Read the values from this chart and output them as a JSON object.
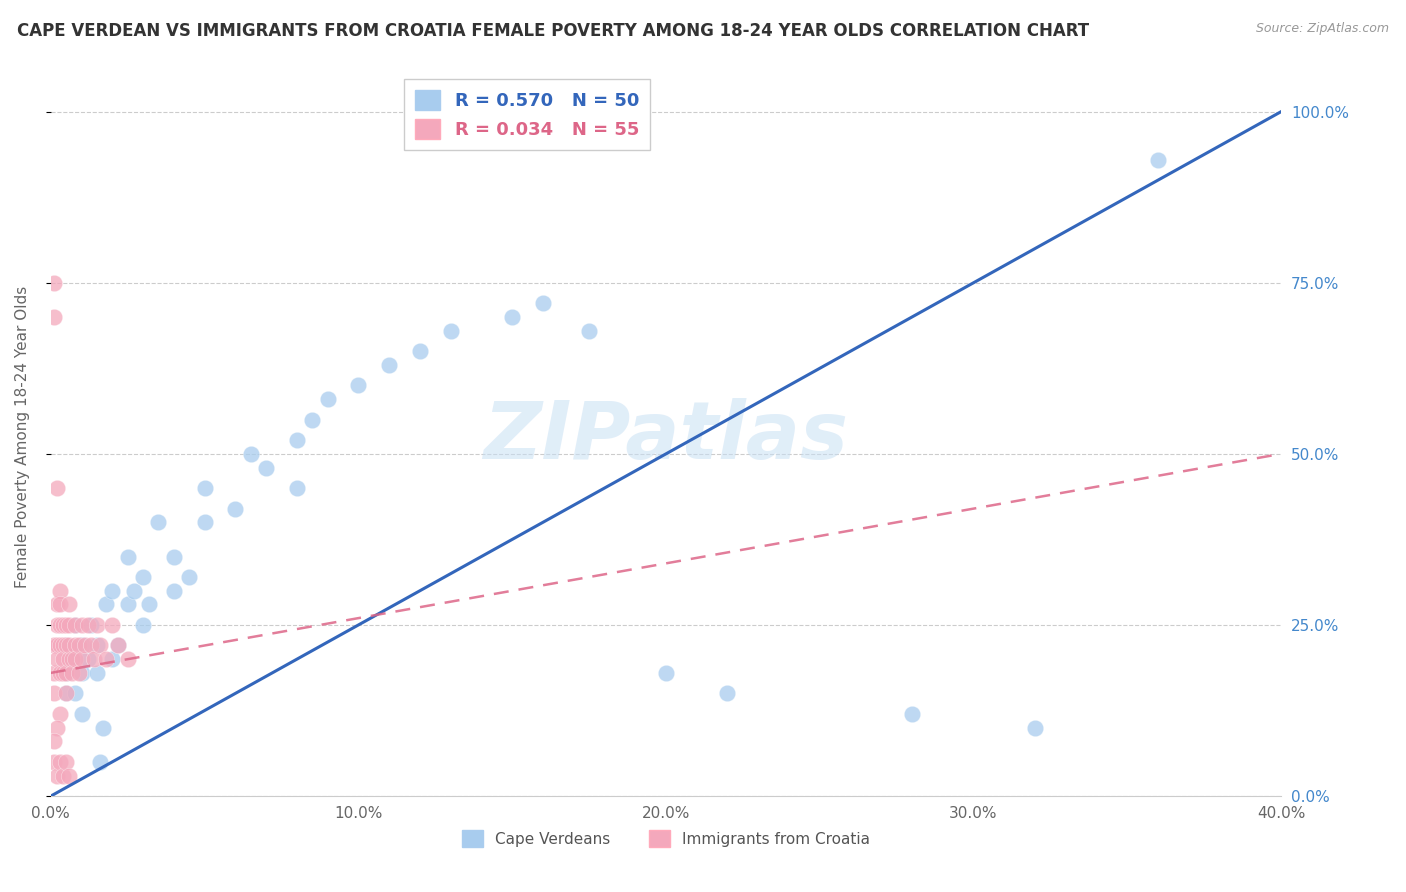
{
  "title": "CAPE VERDEAN VS IMMIGRANTS FROM CROATIA FEMALE POVERTY AMONG 18-24 YEAR OLDS CORRELATION CHART",
  "source": "Source: ZipAtlas.com",
  "xlabel_ticks": [
    "0.0%",
    "10.0%",
    "20.0%",
    "30.0%",
    "40.0%"
  ],
  "ylabel_ticks": [
    "0.0%",
    "25.0%",
    "50.0%",
    "75.0%",
    "100.0%"
  ],
  "xmin": 0.0,
  "xmax": 0.4,
  "ymin": 0.0,
  "ymax": 1.05,
  "ylabel": "Female Poverty Among 18-24 Year Olds",
  "legend_label_blue": "Cape Verdeans",
  "legend_label_pink": "Immigrants from Croatia",
  "r_blue": 0.57,
  "n_blue": 50,
  "r_pink": 0.034,
  "n_pink": 55,
  "blue_color": "#A8CCEE",
  "pink_color": "#F4A8BC",
  "line_blue": "#3366BB",
  "line_pink": "#DD6688",
  "watermark": "ZIPatlas",
  "blue_line_x0": 0.0,
  "blue_line_y0": 0.0,
  "blue_line_x1": 0.4,
  "blue_line_y1": 1.0,
  "pink_line_x0": 0.0,
  "pink_line_y0": 0.18,
  "pink_line_x1": 0.4,
  "pink_line_y1": 0.5,
  "blue_x": [
    0.005,
    0.005,
    0.005,
    0.007,
    0.008,
    0.008,
    0.01,
    0.01,
    0.01,
    0.012,
    0.013,
    0.015,
    0.015,
    0.016,
    0.017,
    0.018,
    0.02,
    0.02,
    0.022,
    0.025,
    0.025,
    0.027,
    0.03,
    0.03,
    0.032,
    0.035,
    0.04,
    0.04,
    0.045,
    0.05,
    0.05,
    0.06,
    0.065,
    0.07,
    0.08,
    0.08,
    0.085,
    0.09,
    0.1,
    0.11,
    0.12,
    0.13,
    0.15,
    0.16,
    0.175,
    0.2,
    0.22,
    0.28,
    0.32,
    0.36
  ],
  "blue_y": [
    0.15,
    0.18,
    0.22,
    0.2,
    0.15,
    0.25,
    0.18,
    0.22,
    0.12,
    0.2,
    0.25,
    0.18,
    0.22,
    0.05,
    0.1,
    0.28,
    0.2,
    0.3,
    0.22,
    0.28,
    0.35,
    0.3,
    0.25,
    0.32,
    0.28,
    0.4,
    0.3,
    0.35,
    0.32,
    0.4,
    0.45,
    0.42,
    0.5,
    0.48,
    0.45,
    0.52,
    0.55,
    0.58,
    0.6,
    0.63,
    0.65,
    0.68,
    0.7,
    0.72,
    0.68,
    0.18,
    0.15,
    0.12,
    0.1,
    0.93
  ],
  "pink_x": [
    0.001,
    0.001,
    0.001,
    0.001,
    0.001,
    0.002,
    0.002,
    0.002,
    0.002,
    0.003,
    0.003,
    0.003,
    0.003,
    0.003,
    0.004,
    0.004,
    0.004,
    0.004,
    0.005,
    0.005,
    0.005,
    0.005,
    0.006,
    0.006,
    0.006,
    0.006,
    0.007,
    0.007,
    0.008,
    0.008,
    0.008,
    0.009,
    0.009,
    0.01,
    0.01,
    0.011,
    0.012,
    0.013,
    0.014,
    0.015,
    0.016,
    0.018,
    0.02,
    0.022,
    0.025,
    0.003,
    0.002,
    0.001,
    0.001,
    0.002,
    0.003,
    0.004,
    0.005,
    0.006,
    0.002
  ],
  "pink_y": [
    0.75,
    0.7,
    0.22,
    0.18,
    0.15,
    0.22,
    0.2,
    0.28,
    0.25,
    0.3,
    0.28,
    0.25,
    0.22,
    0.18,
    0.22,
    0.25,
    0.18,
    0.2,
    0.25,
    0.22,
    0.18,
    0.15,
    0.2,
    0.22,
    0.28,
    0.25,
    0.2,
    0.18,
    0.22,
    0.25,
    0.2,
    0.22,
    0.18,
    0.25,
    0.2,
    0.22,
    0.25,
    0.22,
    0.2,
    0.25,
    0.22,
    0.2,
    0.25,
    0.22,
    0.2,
    0.12,
    0.1,
    0.08,
    0.05,
    0.03,
    0.05,
    0.03,
    0.05,
    0.03,
    0.45
  ]
}
